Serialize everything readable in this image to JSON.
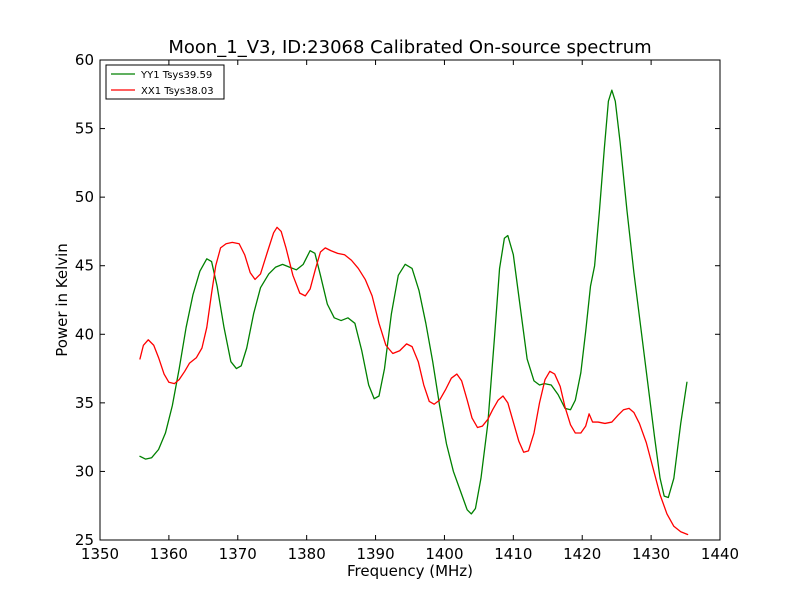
{
  "chart_data": {
    "type": "line",
    "title": "Moon_1_V3, ID:23068 Calibrated On-source spectrum",
    "xlabel": "Frequency (MHz)",
    "ylabel": "Power in Kelvin",
    "xlim": [
      1350,
      1440
    ],
    "ylim": [
      25,
      60
    ],
    "xticks": [
      1350,
      1360,
      1370,
      1380,
      1390,
      1400,
      1410,
      1420,
      1430,
      1440
    ],
    "yticks": [
      25,
      30,
      35,
      40,
      45,
      50,
      55,
      60
    ],
    "grid": false,
    "legend_position": "top-left",
    "series": [
      {
        "name": "YY1 Tsys39.59",
        "color": "#008000",
        "points": [
          [
            1355.8,
            31.1
          ],
          [
            1356.6,
            30.9
          ],
          [
            1357.5,
            31.0
          ],
          [
            1358.5,
            31.6
          ],
          [
            1359.5,
            32.8
          ],
          [
            1360.5,
            34.8
          ],
          [
            1361.5,
            37.5
          ],
          [
            1362.5,
            40.5
          ],
          [
            1363.5,
            42.9
          ],
          [
            1364.5,
            44.6
          ],
          [
            1365.5,
            45.5
          ],
          [
            1366.2,
            45.3
          ],
          [
            1367.0,
            43.5
          ],
          [
            1368.0,
            40.5
          ],
          [
            1369.0,
            38.0
          ],
          [
            1369.8,
            37.5
          ],
          [
            1370.5,
            37.7
          ],
          [
            1371.3,
            39.0
          ],
          [
            1372.3,
            41.5
          ],
          [
            1373.3,
            43.4
          ],
          [
            1374.5,
            44.4
          ],
          [
            1375.5,
            44.9
          ],
          [
            1376.5,
            45.1
          ],
          [
            1377.5,
            44.9
          ],
          [
            1378.5,
            44.7
          ],
          [
            1379.5,
            45.1
          ],
          [
            1380.5,
            46.1
          ],
          [
            1381.2,
            45.9
          ],
          [
            1382.0,
            44.3
          ],
          [
            1383.0,
            42.2
          ],
          [
            1384.0,
            41.2
          ],
          [
            1385.0,
            41.0
          ],
          [
            1386.0,
            41.2
          ],
          [
            1387.0,
            40.8
          ],
          [
            1388.0,
            38.8
          ],
          [
            1389.0,
            36.3
          ],
          [
            1389.8,
            35.3
          ],
          [
            1390.5,
            35.5
          ],
          [
            1391.3,
            37.5
          ],
          [
            1392.3,
            41.5
          ],
          [
            1393.3,
            44.3
          ],
          [
            1394.3,
            45.1
          ],
          [
            1395.3,
            44.8
          ],
          [
            1396.3,
            43.2
          ],
          [
            1397.3,
            40.8
          ],
          [
            1398.3,
            38.0
          ],
          [
            1399.3,
            34.8
          ],
          [
            1400.3,
            32.0
          ],
          [
            1401.3,
            30.0
          ],
          [
            1402.3,
            28.6
          ],
          [
            1403.3,
            27.2
          ],
          [
            1403.9,
            26.9
          ],
          [
            1404.5,
            27.3
          ],
          [
            1405.3,
            29.5
          ],
          [
            1406.3,
            33.5
          ],
          [
            1407.3,
            40.0
          ],
          [
            1408.0,
            44.8
          ],
          [
            1408.7,
            47.0
          ],
          [
            1409.2,
            47.2
          ],
          [
            1410.0,
            45.8
          ],
          [
            1411.0,
            42.0
          ],
          [
            1412.0,
            38.2
          ],
          [
            1413.0,
            36.6
          ],
          [
            1413.8,
            36.3
          ],
          [
            1414.5,
            36.4
          ],
          [
            1415.5,
            36.3
          ],
          [
            1416.5,
            35.6
          ],
          [
            1417.5,
            34.6
          ],
          [
            1418.3,
            34.5
          ],
          [
            1419.0,
            35.2
          ],
          [
            1419.8,
            37.2
          ],
          [
            1420.5,
            40.2
          ],
          [
            1421.2,
            43.5
          ],
          [
            1421.8,
            45.0
          ],
          [
            1422.5,
            49.0
          ],
          [
            1423.2,
            53.5
          ],
          [
            1423.8,
            57.0
          ],
          [
            1424.3,
            57.8
          ],
          [
            1424.8,
            57.0
          ],
          [
            1425.5,
            54.0
          ],
          [
            1426.5,
            49.0
          ],
          [
            1427.5,
            44.5
          ],
          [
            1428.5,
            40.5
          ],
          [
            1429.5,
            36.5
          ],
          [
            1430.5,
            32.5
          ],
          [
            1431.3,
            29.5
          ],
          [
            1431.9,
            28.2
          ],
          [
            1432.5,
            28.1
          ],
          [
            1433.3,
            29.5
          ],
          [
            1434.3,
            33.5
          ],
          [
            1435.2,
            36.5
          ]
        ]
      },
      {
        "name": "XX1 Tsys38.03",
        "color": "#ff0000",
        "points": [
          [
            1355.8,
            38.2
          ],
          [
            1356.3,
            39.2
          ],
          [
            1357.0,
            39.6
          ],
          [
            1357.8,
            39.2
          ],
          [
            1358.5,
            38.3
          ],
          [
            1359.3,
            37.1
          ],
          [
            1360.0,
            36.5
          ],
          [
            1360.8,
            36.4
          ],
          [
            1361.5,
            36.7
          ],
          [
            1362.3,
            37.3
          ],
          [
            1363.0,
            37.9
          ],
          [
            1364.0,
            38.3
          ],
          [
            1364.8,
            39.0
          ],
          [
            1365.5,
            40.5
          ],
          [
            1366.2,
            43.0
          ],
          [
            1366.8,
            45.0
          ],
          [
            1367.5,
            46.3
          ],
          [
            1368.3,
            46.6
          ],
          [
            1369.2,
            46.7
          ],
          [
            1370.2,
            46.6
          ],
          [
            1371.0,
            45.8
          ],
          [
            1371.8,
            44.5
          ],
          [
            1372.5,
            44.0
          ],
          [
            1373.3,
            44.4
          ],
          [
            1374.3,
            46.0
          ],
          [
            1375.2,
            47.4
          ],
          [
            1375.7,
            47.8
          ],
          [
            1376.3,
            47.5
          ],
          [
            1377.0,
            46.3
          ],
          [
            1378.0,
            44.3
          ],
          [
            1379.0,
            43.0
          ],
          [
            1379.8,
            42.8
          ],
          [
            1380.5,
            43.3
          ],
          [
            1381.3,
            44.8
          ],
          [
            1382.0,
            46.0
          ],
          [
            1382.7,
            46.3
          ],
          [
            1383.5,
            46.1
          ],
          [
            1384.5,
            45.9
          ],
          [
            1385.5,
            45.8
          ],
          [
            1386.5,
            45.4
          ],
          [
            1387.5,
            44.8
          ],
          [
            1388.5,
            44.0
          ],
          [
            1389.5,
            42.8
          ],
          [
            1390.5,
            40.8
          ],
          [
            1391.5,
            39.2
          ],
          [
            1392.5,
            38.6
          ],
          [
            1393.5,
            38.8
          ],
          [
            1394.5,
            39.3
          ],
          [
            1395.3,
            39.1
          ],
          [
            1396.2,
            38.0
          ],
          [
            1397.0,
            36.3
          ],
          [
            1397.8,
            35.1
          ],
          [
            1398.5,
            34.9
          ],
          [
            1399.3,
            35.2
          ],
          [
            1400.2,
            36.0
          ],
          [
            1401.0,
            36.8
          ],
          [
            1401.8,
            37.1
          ],
          [
            1402.5,
            36.6
          ],
          [
            1403.3,
            35.2
          ],
          [
            1404.0,
            33.9
          ],
          [
            1404.8,
            33.2
          ],
          [
            1405.5,
            33.3
          ],
          [
            1406.3,
            33.8
          ],
          [
            1407.0,
            34.5
          ],
          [
            1407.8,
            35.2
          ],
          [
            1408.5,
            35.5
          ],
          [
            1409.2,
            35.0
          ],
          [
            1410.0,
            33.6
          ],
          [
            1410.8,
            32.2
          ],
          [
            1411.5,
            31.4
          ],
          [
            1412.2,
            31.5
          ],
          [
            1413.0,
            32.8
          ],
          [
            1413.8,
            35.0
          ],
          [
            1414.6,
            36.7
          ],
          [
            1415.3,
            37.3
          ],
          [
            1416.0,
            37.1
          ],
          [
            1416.8,
            36.2
          ],
          [
            1417.5,
            34.7
          ],
          [
            1418.3,
            33.4
          ],
          [
            1419.0,
            32.8
          ],
          [
            1419.8,
            32.8
          ],
          [
            1420.5,
            33.3
          ],
          [
            1421.0,
            34.2
          ],
          [
            1421.5,
            33.6
          ],
          [
            1422.3,
            33.6
          ],
          [
            1423.3,
            33.5
          ],
          [
            1424.3,
            33.6
          ],
          [
            1425.2,
            34.1
          ],
          [
            1426.0,
            34.5
          ],
          [
            1426.8,
            34.6
          ],
          [
            1427.5,
            34.3
          ],
          [
            1428.3,
            33.5
          ],
          [
            1429.3,
            32.1
          ],
          [
            1430.3,
            30.2
          ],
          [
            1431.3,
            28.3
          ],
          [
            1432.3,
            26.9
          ],
          [
            1433.3,
            26.0
          ],
          [
            1434.3,
            25.6
          ],
          [
            1435.3,
            25.4
          ]
        ]
      }
    ]
  }
}
